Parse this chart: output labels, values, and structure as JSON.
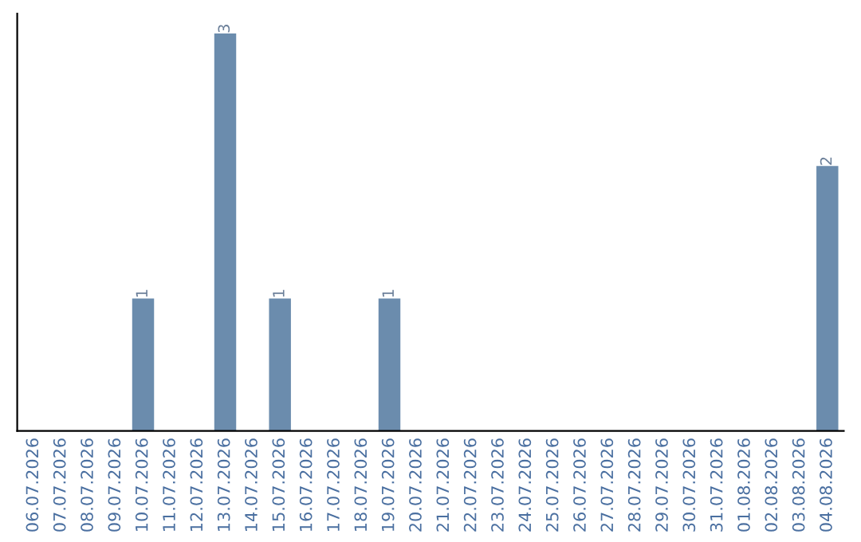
{
  "chart_data": {
    "type": "bar",
    "categories": [
      "06.07.2026",
      "07.07.2026",
      "08.07.2026",
      "09.07.2026",
      "10.07.2026",
      "11.07.2026",
      "12.07.2026",
      "13.07.2026",
      "14.07.2026",
      "15.07.2026",
      "16.07.2026",
      "17.07.2026",
      "18.07.2026",
      "19.07.2026",
      "20.07.2026",
      "21.07.2026",
      "22.07.2026",
      "23.07.2026",
      "24.07.2026",
      "25.07.2026",
      "26.07.2026",
      "27.07.2026",
      "28.07.2026",
      "29.07.2026",
      "30.07.2026",
      "31.07.2026",
      "01.08.2026",
      "02.08.2026",
      "03.08.2026",
      "04.08.2026"
    ],
    "values": [
      0,
      0,
      0,
      0,
      1,
      0,
      0,
      3,
      0,
      1,
      0,
      0,
      0,
      1,
      0,
      0,
      0,
      0,
      0,
      0,
      0,
      0,
      0,
      0,
      0,
      0,
      0,
      0,
      0,
      2
    ],
    "value_labels": [
      null,
      null,
      null,
      null,
      "1",
      null,
      null,
      "3",
      null,
      "1",
      null,
      null,
      null,
      "1",
      null,
      null,
      null,
      null,
      null,
      null,
      null,
      null,
      null,
      null,
      null,
      null,
      null,
      null,
      null,
      "2"
    ],
    "color": "#6b8cad",
    "grid": false,
    "legend": false
  }
}
